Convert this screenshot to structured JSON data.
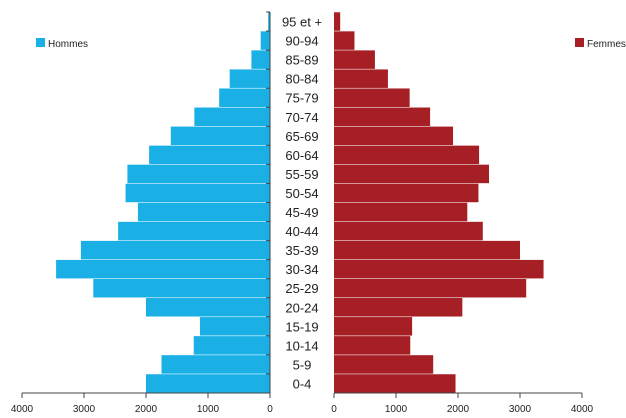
{
  "colors": {
    "men": "#1ab0e6",
    "women": "#a61f25",
    "axis": "#444444",
    "text": "#222222"
  },
  "chart_data": {
    "type": "bar",
    "subtype": "population-pyramid",
    "title": "",
    "age_groups": [
      "0-4",
      "5-9",
      "10-14",
      "15-19",
      "20-24",
      "25-29",
      "30-34",
      "35-39",
      "40-44",
      "45-49",
      "50-54",
      "55-59",
      "60-64",
      "65-69",
      "70-74",
      "75-79",
      "80-84",
      "85-89",
      "90-94",
      "95 et +"
    ],
    "series": [
      {
        "name": "Hommes",
        "side": "left",
        "values": [
          2000,
          1750,
          1230,
          1130,
          2000,
          2850,
          3450,
          3050,
          2450,
          2130,
          2330,
          2300,
          1950,
          1600,
          1220,
          820,
          650,
          300,
          150,
          30
        ]
      },
      {
        "name": "Femmes",
        "side": "right",
        "values": [
          1960,
          1600,
          1230,
          1260,
          2070,
          3100,
          3380,
          3000,
          2400,
          2150,
          2330,
          2500,
          2340,
          1920,
          1550,
          1220,
          870,
          660,
          330,
          100
        ]
      }
    ],
    "x_range": [
      0,
      4000
    ],
    "x_ticks": [
      "4000",
      "3000",
      "2000",
      "1000",
      "0",
      "0",
      "1000",
      "2000",
      "3000",
      "4000"
    ],
    "legend": [
      "Hommes",
      "Femmes"
    ],
    "legend_placement": "top-left / top-right",
    "grid": false
  }
}
